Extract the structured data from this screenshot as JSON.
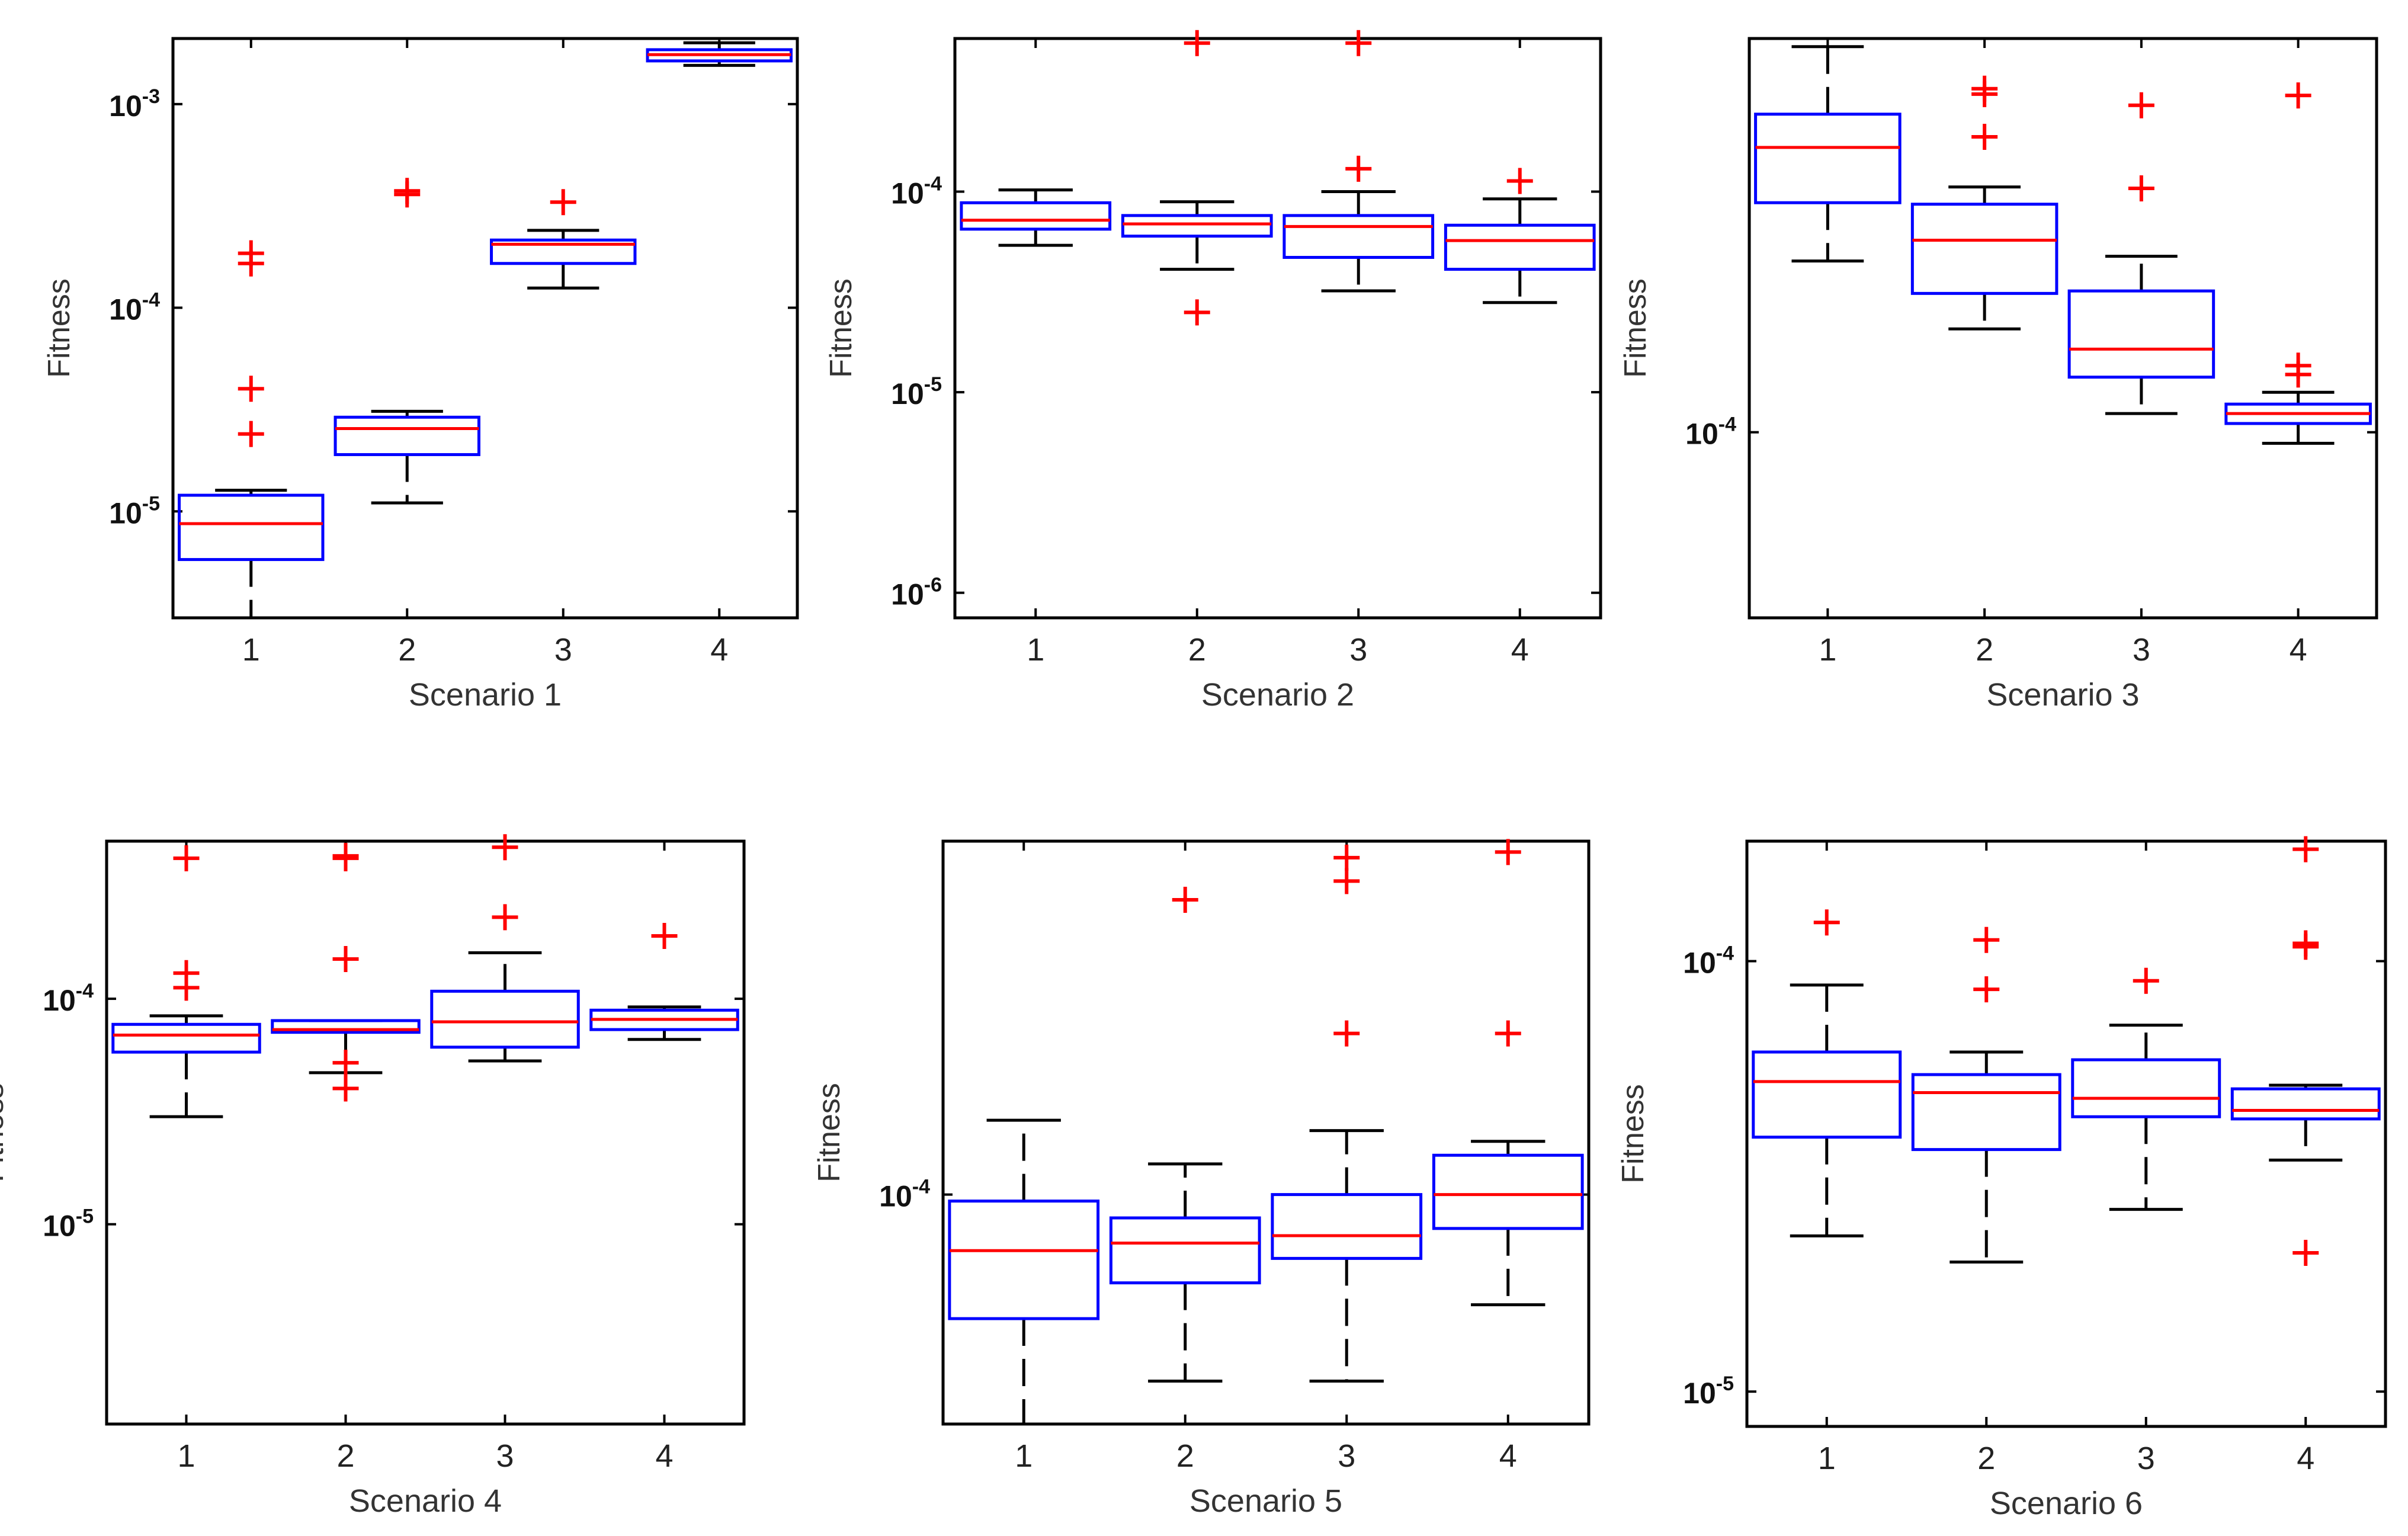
{
  "chart_data": [
    {
      "type": "box",
      "xlabel": "Scenario 1",
      "ylabel": "Fitness",
      "yscale": "log",
      "ylim": [
        3e-06,
        0.0021
      ],
      "yticks": [
        {
          "value": 1e-05,
          "base": "10",
          "exp": "-5"
        },
        {
          "value": 0.0001,
          "base": "10",
          "exp": "-4"
        },
        {
          "value": 0.001,
          "base": "10",
          "exp": "-3"
        }
      ],
      "categories": [
        "1",
        "2",
        "3",
        "4"
      ],
      "boxes": [
        {
          "min": 3e-06,
          "q1": 5.8e-06,
          "median": 8.7e-06,
          "q3": 1.2e-05,
          "max": 1.27e-05,
          "outliers": [
            0.000165,
            0.000185,
            4e-05,
            2.4e-05
          ]
        },
        {
          "min": 1.1e-05,
          "q1": 1.9e-05,
          "median": 2.55e-05,
          "q3": 2.9e-05,
          "max": 3.1e-05,
          "outliers": [
            0.00036,
            0.000375
          ]
        },
        {
          "min": 0.000125,
          "q1": 0.000165,
          "median": 0.000205,
          "q3": 0.000215,
          "max": 0.00024,
          "outliers": [
            0.00033
          ]
        },
        {
          "min": 0.00155,
          "q1": 0.00163,
          "median": 0.00175,
          "q3": 0.00185,
          "max": 0.002,
          "outliers": []
        }
      ]
    },
    {
      "type": "box",
      "xlabel": "Scenario 2",
      "ylabel": "Fitness",
      "yscale": "log",
      "ylim": [
        7.5e-07,
        0.00058
      ],
      "yticks": [
        {
          "value": 1e-06,
          "base": "10",
          "exp": "-6"
        },
        {
          "value": 1e-05,
          "base": "10",
          "exp": "-5"
        },
        {
          "value": 0.0001,
          "base": "10",
          "exp": "-4"
        }
      ],
      "categories": [
        "1",
        "2",
        "3",
        "4"
      ],
      "boxes": [
        {
          "min": 5.4e-05,
          "q1": 6.5e-05,
          "median": 7.2e-05,
          "q3": 8.8e-05,
          "max": 0.000102,
          "outliers": []
        },
        {
          "min": 4.1e-05,
          "q1": 6e-05,
          "median": 6.9e-05,
          "q3": 7.6e-05,
          "max": 8.9e-05,
          "outliers": [
            0.00055,
            2.5e-05
          ]
        },
        {
          "min": 3.2e-05,
          "q1": 4.7e-05,
          "median": 6.7e-05,
          "q3": 7.6e-05,
          "max": 0.0001,
          "outliers": [
            0.00055,
            0.00013
          ]
        },
        {
          "min": 2.8e-05,
          "q1": 4.1e-05,
          "median": 5.7e-05,
          "q3": 6.8e-05,
          "max": 9.2e-05,
          "outliers": [
            0.000113
          ]
        }
      ]
    },
    {
      "type": "box",
      "xlabel": "Scenario 3",
      "ylabel": "Fitness",
      "yscale": "log",
      "ylim": [
        3.55e-05,
        0.0009
      ],
      "yticks": [
        {
          "value": 0.0001,
          "base": "10",
          "exp": "-4"
        }
      ],
      "categories": [
        "1",
        "2",
        "3",
        "4"
      ],
      "boxes": [
        {
          "min": 0.00026,
          "q1": 0.00036,
          "median": 0.00049,
          "q3": 0.00059,
          "max": 0.00086,
          "outliers": []
        },
        {
          "min": 0.000178,
          "q1": 0.000217,
          "median": 0.000292,
          "q3": 0.000357,
          "max": 0.000393,
          "outliers": [
            0.00068,
            0.00066,
            0.00052
          ]
        },
        {
          "min": 0.000111,
          "q1": 0.000136,
          "median": 0.000159,
          "q3": 0.00022,
          "max": 0.000267,
          "outliers": [
            0.00062,
            0.00039
          ]
        },
        {
          "min": 9.4e-05,
          "q1": 0.000105,
          "median": 0.000111,
          "q3": 0.000117,
          "max": 0.000125,
          "outliers": [
            0.000145,
            0.000138,
            0.000655
          ]
        }
      ]
    },
    {
      "type": "box",
      "xlabel": "Scenario 4",
      "ylabel": "Fitness",
      "yscale": "log",
      "ylim": [
        1.3e-06,
        0.0005
      ],
      "yticks": [
        {
          "value": 1e-05,
          "base": "10",
          "exp": "-5"
        },
        {
          "value": 0.0001,
          "base": "10",
          "exp": "-4"
        }
      ],
      "categories": [
        "1",
        "2",
        "3",
        "4"
      ],
      "boxes": [
        {
          "min": 3e-05,
          "q1": 5.8e-05,
          "median": 6.9e-05,
          "q3": 7.7e-05,
          "max": 8.4e-05,
          "outliers": [
            0.00042,
            0.00013,
            0.000112
          ]
        },
        {
          "min": 4.7e-05,
          "q1": 7.1e-05,
          "median": 7.3e-05,
          "q3": 8e-05,
          "max": 8e-05,
          "outliers": [
            0.00043,
            0.00042,
            0.00015,
            5.2e-05,
            4e-05
          ]
        },
        {
          "min": 5.3e-05,
          "q1": 6.1e-05,
          "median": 7.9e-05,
          "q3": 0.000108,
          "max": 0.00016,
          "outliers": [
            0.00047,
            0.00023
          ]
        },
        {
          "min": 6.6e-05,
          "q1": 7.3e-05,
          "median": 8.1e-05,
          "q3": 8.9e-05,
          "max": 9.2e-05,
          "outliers": [
            0.00019
          ]
        }
      ]
    },
    {
      "type": "box",
      "xlabel": "Scenario 5",
      "ylabel": "Fitness",
      "yscale": "log",
      "ylim": [
        4.9e-05,
        0.0003
      ],
      "yticks": [
        {
          "value": 0.0001,
          "base": "10",
          "exp": "-4"
        }
      ],
      "categories": [
        "1",
        "2",
        "3",
        "4"
      ],
      "boxes": [
        {
          "min": 4.9e-05,
          "q1": 6.8e-05,
          "median": 8.4e-05,
          "q3": 9.8e-05,
          "max": 0.000126,
          "outliers": []
        },
        {
          "min": 5.6e-05,
          "q1": 7.6e-05,
          "median": 8.6e-05,
          "q3": 9.3e-05,
          "max": 0.00011,
          "outliers": [
            0.00025
          ]
        },
        {
          "min": 5.6e-05,
          "q1": 8.2e-05,
          "median": 8.8e-05,
          "q3": 0.0001,
          "max": 0.000122,
          "outliers": [
            0.000285,
            0.000265,
            0.000165
          ]
        },
        {
          "min": 7.1e-05,
          "q1": 9e-05,
          "median": 0.0001,
          "q3": 0.000113,
          "max": 0.000118,
          "outliers": [
            0.00029,
            0.000165
          ]
        }
      ]
    },
    {
      "type": "box",
      "xlabel": "Scenario 6",
      "ylabel": "Fitness",
      "yscale": "log",
      "ylim": [
        8.3e-06,
        0.00019
      ],
      "yticks": [
        {
          "value": 1e-05,
          "base": "10",
          "exp": "-5"
        },
        {
          "value": 0.0001,
          "base": "10",
          "exp": "-4"
        }
      ],
      "categories": [
        "1",
        "2",
        "3",
        "4"
      ],
      "boxes": [
        {
          "min": 2.3e-05,
          "q1": 3.9e-05,
          "median": 5.25e-05,
          "q3": 6.15e-05,
          "max": 8.8e-05,
          "outliers": [
            0.000123
          ]
        },
        {
          "min": 2e-05,
          "q1": 3.65e-05,
          "median": 4.95e-05,
          "q3": 5.45e-05,
          "max": 6.15e-05,
          "outliers": [
            0.000112,
            8.6e-05
          ]
        },
        {
          "min": 2.65e-05,
          "q1": 4.35e-05,
          "median": 4.8e-05,
          "q3": 5.9e-05,
          "max": 7.1e-05,
          "outliers": [
            9e-05
          ]
        },
        {
          "min": 3.45e-05,
          "q1": 4.3e-05,
          "median": 4.5e-05,
          "q3": 5.05e-05,
          "max": 5.15e-05,
          "outliers": [
            0.000182,
            0.00011,
            0.000108,
            2.1e-05
          ]
        }
      ]
    }
  ]
}
